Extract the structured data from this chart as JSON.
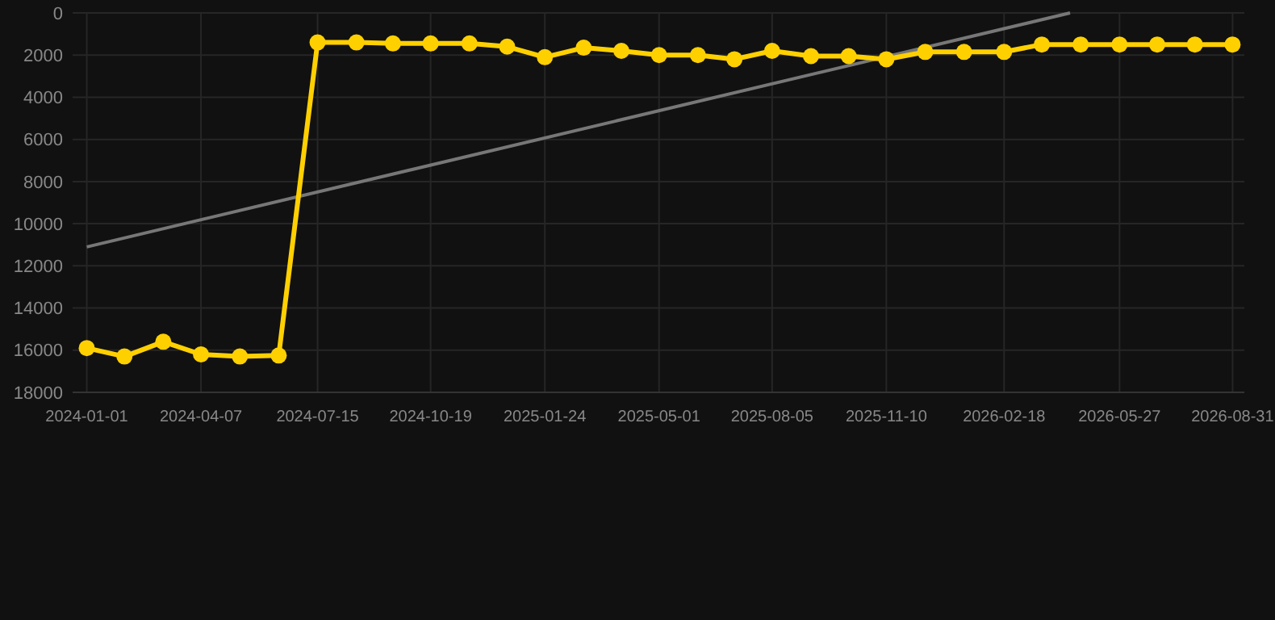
{
  "chart_data": {
    "type": "line",
    "x": [
      "2024-01-01",
      "2024-02-02",
      "2024-03-06",
      "2024-04-07",
      "2024-05-10",
      "2024-06-12",
      "2024-07-15",
      "2024-08-17",
      "2024-09-17",
      "2024-10-19",
      "2024-11-21",
      "2024-12-23",
      "2025-01-24",
      "2025-02-26",
      "2025-03-30",
      "2025-05-01",
      "2025-06-03",
      "2025-07-04",
      "2025-08-05",
      "2025-09-07",
      "2025-10-09",
      "2025-11-10",
      "2025-12-13",
      "2026-01-15",
      "2026-02-18",
      "2026-03-22",
      "2026-04-24",
      "2026-05-27",
      "2026-06-28",
      "2026-07-30",
      "2026-08-31"
    ],
    "series": [
      {
        "color": "#ffd000",
        "marker": "circle",
        "values": [
          15900,
          16300,
          15600,
          16200,
          16300,
          16250,
          1400,
          1400,
          1450,
          1450,
          1450,
          1600,
          2100,
          1650,
          1800,
          2000,
          2000,
          2200,
          1800,
          2050,
          2050,
          2200,
          1850,
          1850,
          1850,
          1500,
          1500,
          1500,
          1500,
          1500,
          1500
        ]
      },
      {
        "color": "#777777",
        "marker": "none",
        "x": [
          "2024-01-01",
          "2026-04-15"
        ],
        "values": [
          11100,
          0
        ]
      }
    ],
    "xlim": [
      "2023-12-20",
      "2026-09-10"
    ],
    "xticks": [
      "2024-01-01",
      "2024-04-07",
      "2024-07-15",
      "2024-10-19",
      "2025-01-24",
      "2025-05-01",
      "2025-08-05",
      "2025-11-10",
      "2026-02-18",
      "2026-05-27",
      "2026-08-31"
    ],
    "ylim": [
      18000,
      0
    ],
    "yticks": [
      0,
      2000,
      4000,
      6000,
      8000,
      10000,
      12000,
      14000,
      16000,
      18000
    ],
    "grid": true,
    "line_style": "solid"
  }
}
